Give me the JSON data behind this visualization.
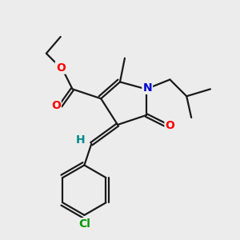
{
  "bg_color": "#ececec",
  "bond_color": "#1a1a1a",
  "bond_width": 1.6,
  "atom_colors": {
    "O": "#ff0000",
    "N": "#0000cc",
    "Cl": "#009900",
    "H": "#008b8b",
    "C": "#1a1a1a"
  },
  "font_size": 10,
  "fig_width": 3.0,
  "fig_height": 3.0,
  "dpi": 100,
  "xlim": [
    0,
    10
  ],
  "ylim": [
    0,
    10
  ]
}
